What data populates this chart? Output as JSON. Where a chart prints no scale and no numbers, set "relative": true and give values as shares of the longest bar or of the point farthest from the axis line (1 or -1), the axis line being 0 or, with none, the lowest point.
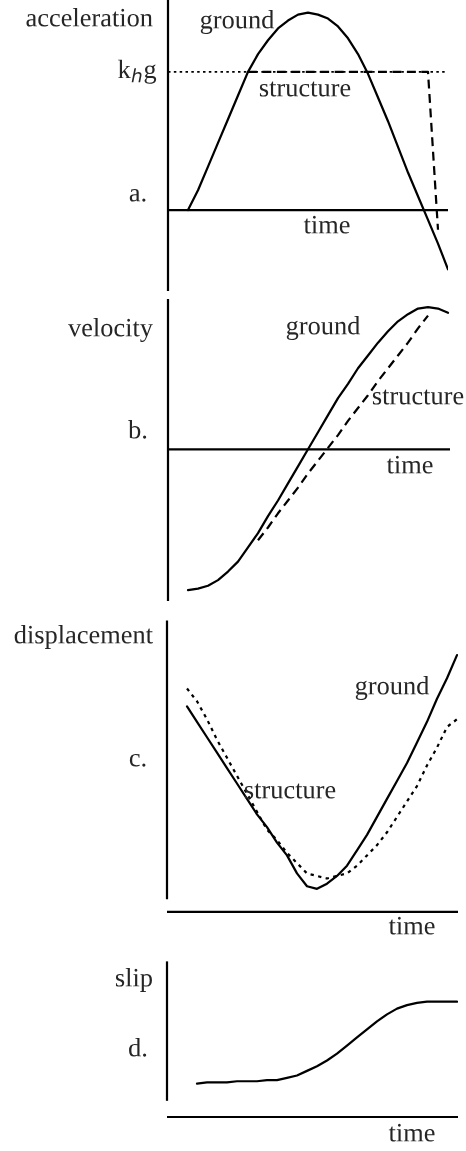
{
  "chart_data": [
    {
      "type": "line",
      "relative": true,
      "ylabel": "acceleration",
      "xlabel": "time",
      "annotations": [
        "a."
      ],
      "categories": [
        null,
        null,
        null,
        null,
        null,
        null,
        null,
        null,
        null,
        null,
        null,
        null,
        null,
        null,
        null,
        null,
        null,
        null,
        null,
        null,
        null,
        null,
        null,
        null,
        null,
        null,
        null,
        null,
        null
      ],
      "ref_lines": [
        {
          "axis": "y",
          "value": 0.7,
          "label": "k$_{h}$g",
          "color": "#000000",
          "line_style": "dotted"
        }
      ],
      "series": [
        {
          "name": "ground",
          "color": "#000000",
          "line_style": "solid",
          "values": [
            null,
            null,
            0.0,
            0.1,
            0.22,
            0.34,
            0.46,
            0.58,
            0.7,
            0.79,
            0.86,
            0.92,
            0.96,
            0.99,
            1.0,
            0.99,
            0.97,
            0.93,
            0.87,
            0.79,
            0.69,
            0.57,
            0.45,
            0.32,
            0.19,
            0.07,
            -0.05,
            -0.17,
            -0.3
          ]
        },
        {
          "name": "structure",
          "color": "#000000",
          "line_style": "dashed",
          "values": [
            null,
            null,
            null,
            null,
            null,
            null,
            null,
            null,
            0.7,
            0.7,
            0.7,
            0.7,
            0.7,
            0.7,
            0.7,
            0.7,
            0.7,
            0.7,
            0.7,
            0.7,
            0.7,
            0.7,
            0.7,
            0.7,
            0.7,
            0.7,
            0.7,
            -0.1,
            null
          ]
        }
      ]
    },
    {
      "type": "line",
      "relative": true,
      "ylabel": "velocity",
      "xlabel": "time",
      "annotations": [
        "b."
      ],
      "categories": [
        null,
        null,
        null,
        null,
        null,
        null,
        null,
        null,
        null,
        null,
        null,
        null,
        null,
        null,
        null,
        null,
        null,
        null,
        null,
        null,
        null,
        null,
        null,
        null,
        null,
        null,
        null,
        null,
        null
      ],
      "series": [
        {
          "name": "ground",
          "color": "#000000",
          "line_style": "solid",
          "values": [
            null,
            null,
            -0.99,
            -0.98,
            -0.96,
            -0.92,
            -0.86,
            -0.79,
            -0.69,
            -0.59,
            -0.47,
            -0.36,
            -0.24,
            -0.12,
            0,
            0.12,
            0.24,
            0.36,
            0.46,
            0.57,
            0.66,
            0.75,
            0.83,
            0.9,
            0.95,
            0.99,
            1.0,
            0.99,
            0.96
          ]
        },
        {
          "name": "structure",
          "color": "#000000",
          "line_style": "dashed",
          "values": [
            null,
            null,
            null,
            null,
            null,
            null,
            null,
            null,
            null,
            -0.64,
            -0.55,
            -0.45,
            -0.36,
            -0.27,
            -0.17,
            -0.08,
            0.01,
            0.1,
            0.2,
            0.29,
            0.38,
            0.48,
            0.57,
            0.66,
            0.75,
            0.85,
            0.94,
            null,
            null
          ]
        }
      ]
    },
    {
      "type": "line",
      "relative": true,
      "ylabel": "displacement",
      "xlabel": "time",
      "annotations": [
        "c."
      ],
      "categories": [
        null,
        null,
        null,
        null,
        null,
        null,
        null,
        null,
        null,
        null,
        null,
        null,
        null,
        null,
        null,
        null,
        null,
        null,
        null,
        null,
        null,
        null,
        null,
        null,
        null,
        null,
        null,
        null,
        null,
        null
      ],
      "series": [
        {
          "name": "ground",
          "color": "#000000",
          "line_style": "solid",
          "values": [
            null,
            null,
            0.8,
            0.74,
            0.68,
            0.62,
            0.56,
            0.5,
            0.44,
            0.38,
            0.33,
            0.27,
            0.22,
            0.15,
            0.1,
            0.09,
            0.11,
            0.14,
            0.18,
            0.24,
            0.3,
            0.37,
            0.44,
            0.51,
            0.58,
            0.66,
            0.74,
            0.83,
            0.91,
            1.0
          ]
        },
        {
          "name": "structure",
          "color": "#000000",
          "line_style": "dotted",
          "values": [
            null,
            null,
            0.87,
            0.82,
            0.75,
            0.67,
            0.6,
            0.53,
            0.46,
            0.39,
            0.32,
            0.28,
            0.23,
            0.19,
            0.15,
            0.14,
            0.13,
            0.14,
            0.15,
            0.18,
            0.22,
            0.26,
            0.31,
            0.37,
            0.43,
            0.49,
            0.57,
            0.64,
            0.72,
            0.75
          ]
        }
      ]
    },
    {
      "type": "line",
      "relative": true,
      "ylabel": "slip",
      "xlabel": "time",
      "annotations": [
        "d."
      ],
      "categories": [
        null,
        null,
        null,
        null,
        null,
        null,
        null,
        null,
        null,
        null,
        null,
        null,
        null,
        null,
        null,
        null,
        null,
        null,
        null,
        null,
        null,
        null,
        null,
        null,
        null,
        null,
        null,
        null,
        null,
        null
      ],
      "series": [
        {
          "color": "#000000",
          "line_style": "solid",
          "values": [
            null,
            null,
            null,
            0.29,
            0.3,
            0.3,
            0.3,
            0.31,
            0.31,
            0.31,
            0.32,
            0.32,
            0.34,
            0.36,
            0.4,
            0.44,
            0.49,
            0.55,
            0.62,
            0.69,
            0.76,
            0.83,
            0.89,
            0.94,
            0.97,
            0.99,
            1.0,
            1.0,
            1.0,
            1.0
          ]
        }
      ]
    }
  ]
}
